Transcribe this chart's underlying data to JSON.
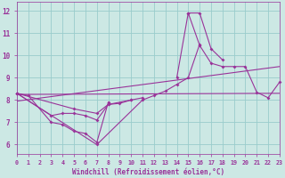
{
  "bg_color": "#cce8e4",
  "grid_color": "#99cccc",
  "line_color": "#993399",
  "xlabel": "Windchill (Refroidissement éolien,°C)",
  "xlim": [
    0,
    23
  ],
  "ylim": [
    5.6,
    12.4
  ],
  "xticks": [
    0,
    1,
    2,
    3,
    4,
    5,
    6,
    7,
    8,
    9,
    10,
    11,
    12,
    13,
    14,
    15,
    16,
    17,
    18,
    19,
    20,
    21,
    22,
    23
  ],
  "yticks": [
    6,
    7,
    8,
    9,
    10,
    11,
    12
  ],
  "series": [
    {
      "x": [
        0,
        1,
        3,
        4,
        5,
        6,
        7,
        8
      ],
      "y": [
        8.3,
        8.2,
        7.0,
        6.9,
        6.6,
        6.5,
        6.1,
        7.9
      ]
    },
    {
      "x": [
        0,
        3,
        4,
        5,
        6,
        7,
        8,
        10
      ],
      "y": [
        8.3,
        7.3,
        7.4,
        7.4,
        7.3,
        7.1,
        7.8,
        8.0
      ]
    },
    {
      "x": [
        0,
        5,
        7,
        8,
        9,
        10,
        11
      ],
      "y": [
        8.3,
        7.6,
        7.4,
        7.8,
        7.85,
        8.0,
        8.1
      ]
    },
    {
      "x": [
        0,
        7,
        11,
        12,
        13,
        14,
        15,
        16
      ],
      "y": [
        8.3,
        6.0,
        8.0,
        8.2,
        8.4,
        8.7,
        9.0,
        10.5
      ]
    },
    {
      "x": [
        14,
        15,
        16,
        17,
        18
      ],
      "y": [
        9.0,
        11.9,
        11.9,
        10.3,
        9.8
      ]
    },
    {
      "x": [
        15,
        16,
        17,
        18,
        19,
        20,
        21,
        22,
        23
      ],
      "y": [
        11.9,
        10.45,
        9.65,
        9.5,
        9.5,
        9.5,
        8.35,
        8.1,
        8.8
      ]
    }
  ],
  "trend_line1": {
    "x": [
      0,
      23
    ],
    "y": [
      8.25,
      8.3
    ]
  },
  "trend_line2": {
    "x": [
      0,
      23
    ],
    "y": [
      7.95,
      9.5
    ]
  }
}
